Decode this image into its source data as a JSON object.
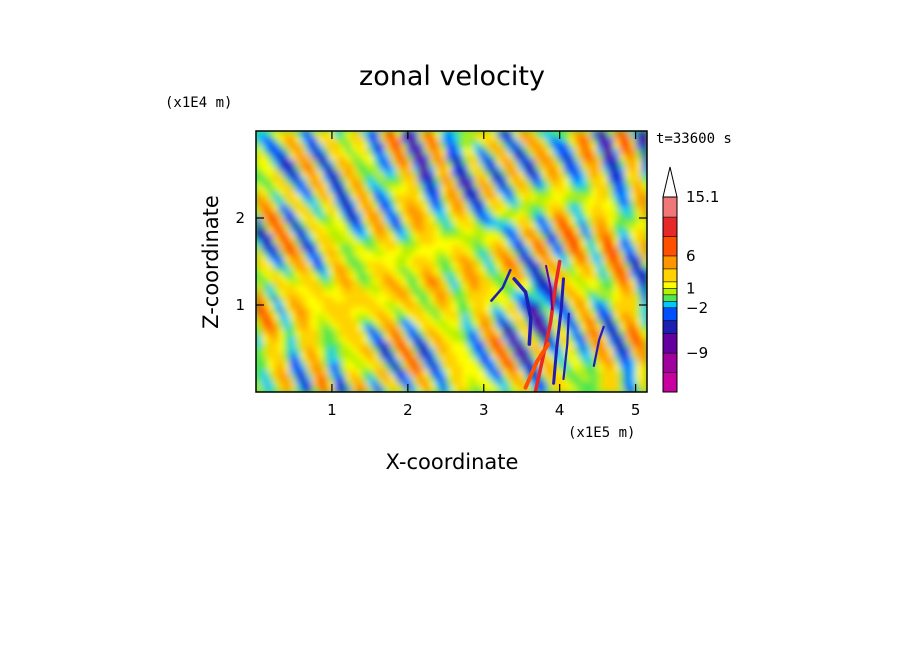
{
  "chart_data": {
    "type": "heatmap",
    "title": "zonal velocity",
    "xlabel": "X-coordinate",
    "ylabel": "Z-coordinate",
    "x_scale_label": "(x1E5 m)",
    "y_scale_label": "(x1E4 m)",
    "time_label": "t=33600 s",
    "x_range": [
      0,
      5.15
    ],
    "y_range": [
      0,
      3.0
    ],
    "x_ticks": [
      1,
      2,
      3,
      4,
      5
    ],
    "y_ticks": [
      1,
      2
    ],
    "x_tick_labels": [
      "1",
      "2",
      "3",
      "4",
      "5"
    ],
    "y_tick_labels": [
      "1",
      "2"
    ],
    "colorbar": {
      "levels": [
        -15,
        -12,
        -9,
        -6,
        -4,
        -2,
        -1,
        0,
        1,
        2,
        4,
        6,
        9,
        12,
        15.1
      ],
      "colors": [
        "#ff00c8",
        "#c800a0",
        "#a0009c",
        "#6400a0",
        "#1e1eb4",
        "#0050ff",
        "#00c8ff",
        "#50e650",
        "#b4f000",
        "#ffff00",
        "#ffd200",
        "#ff9600",
        "#ff5000",
        "#e62828",
        "#f07878",
        "#ffb4c0"
      ],
      "labels": [
        "15.1",
        "6",
        "1",
        "−2",
        "−9"
      ],
      "label_values": [
        15.1,
        6,
        1,
        -2,
        -9
      ],
      "extend_max": true
    },
    "field_stats": {
      "min_approx": -15,
      "max_approx": 15.1,
      "dominant_range": [
        -2,
        4
      ]
    }
  }
}
